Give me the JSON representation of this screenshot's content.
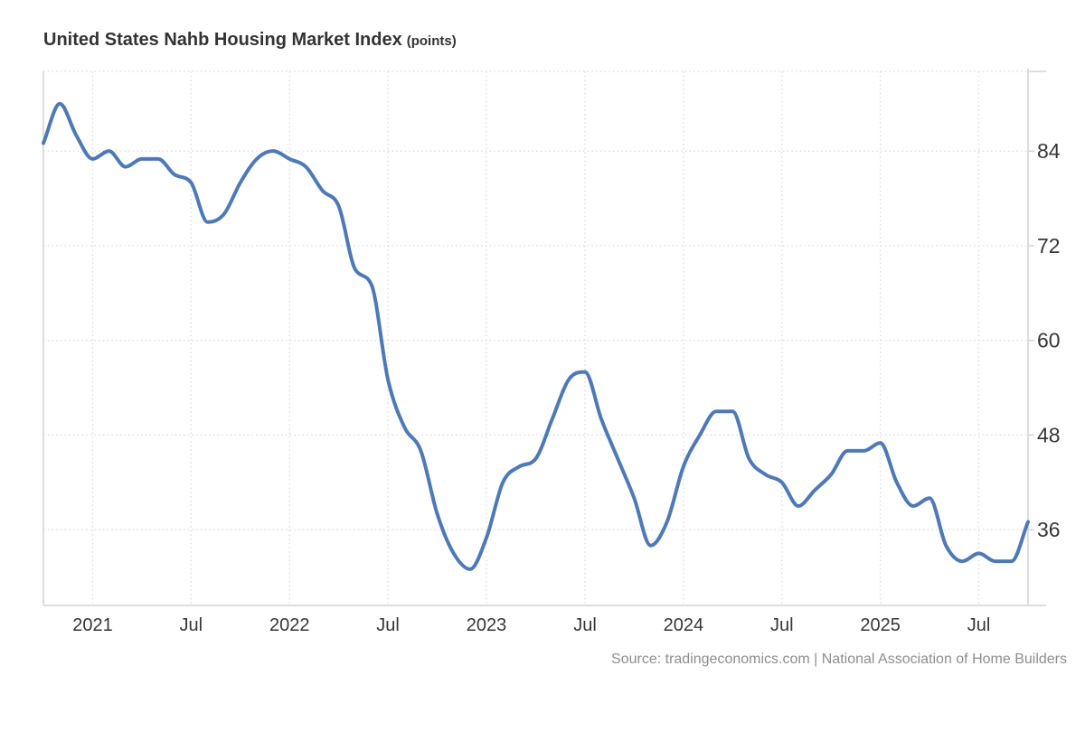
{
  "page": {
    "title": "United States Nahb Housing Market Index",
    "title_unit": "(points)",
    "source": "Source: tradingeconomics.com | National Association of Home Builders"
  },
  "chart_data": {
    "type": "line",
    "title": "United States Nahb Housing Market Index",
    "unit": "points",
    "series_name": "NAHB Housing Market Index",
    "months": [
      "2020-10",
      "2020-11",
      "2020-12",
      "2021-01",
      "2021-02",
      "2021-03",
      "2021-04",
      "2021-05",
      "2021-06",
      "2021-07",
      "2021-08",
      "2021-09",
      "2021-10",
      "2021-11",
      "2021-12",
      "2022-01",
      "2022-02",
      "2022-03",
      "2022-04",
      "2022-05",
      "2022-06",
      "2022-07",
      "2022-08",
      "2022-09",
      "2022-10",
      "2022-11",
      "2022-12",
      "2023-01",
      "2023-02",
      "2023-03",
      "2023-04",
      "2023-05",
      "2023-06",
      "2023-07",
      "2023-08",
      "2023-09",
      "2023-10",
      "2023-11",
      "2023-12",
      "2024-01",
      "2024-02",
      "2024-03",
      "2024-04",
      "2024-05",
      "2024-06",
      "2024-07",
      "2024-08",
      "2024-09",
      "2024-10",
      "2024-11",
      "2024-12",
      "2025-01",
      "2025-02",
      "2025-03",
      "2025-04",
      "2025-05",
      "2025-06",
      "2025-07",
      "2025-08",
      "2025-09",
      "2025-10"
    ],
    "values": [
      85,
      90,
      86,
      83,
      84,
      82,
      83,
      83,
      81,
      80,
      75,
      76,
      80,
      83,
      84,
      83,
      82,
      79,
      77,
      69,
      67,
      55,
      49,
      46,
      38,
      33,
      31,
      35,
      42,
      44,
      45,
      50,
      55,
      56,
      50,
      45,
      40,
      34,
      37,
      44,
      48,
      51,
      51,
      45,
      43,
      42,
      39,
      41,
      43,
      46,
      46,
      47,
      42,
      39,
      40,
      34,
      32,
      33,
      32,
      32,
      37
    ],
    "x_ticks": [
      {
        "label": "2021",
        "month": "2021-01"
      },
      {
        "label": "Jul",
        "month": "2021-07"
      },
      {
        "label": "2022",
        "month": "2022-01"
      },
      {
        "label": "Jul",
        "month": "2022-07"
      },
      {
        "label": "2023",
        "month": "2023-01"
      },
      {
        "label": "Jul",
        "month": "2023-07"
      },
      {
        "label": "2024",
        "month": "2024-01"
      },
      {
        "label": "Jul",
        "month": "2024-07"
      },
      {
        "label": "2025",
        "month": "2025-01"
      },
      {
        "label": "Jul",
        "month": "2025-07"
      }
    ],
    "y_ticks": [
      36,
      48,
      60,
      72,
      84
    ],
    "ylim": [
      26.4,
      94.1
    ],
    "y_axis_side": "right",
    "grid": "dotted",
    "legend": "none",
    "line_color": "#4e79b7",
    "grid_color": "#dcdcdc",
    "axis_color": "#d4d4d4",
    "label_color": "#363636",
    "source": "Source: tradingeconomics.com | National Association of Home Builders"
  }
}
